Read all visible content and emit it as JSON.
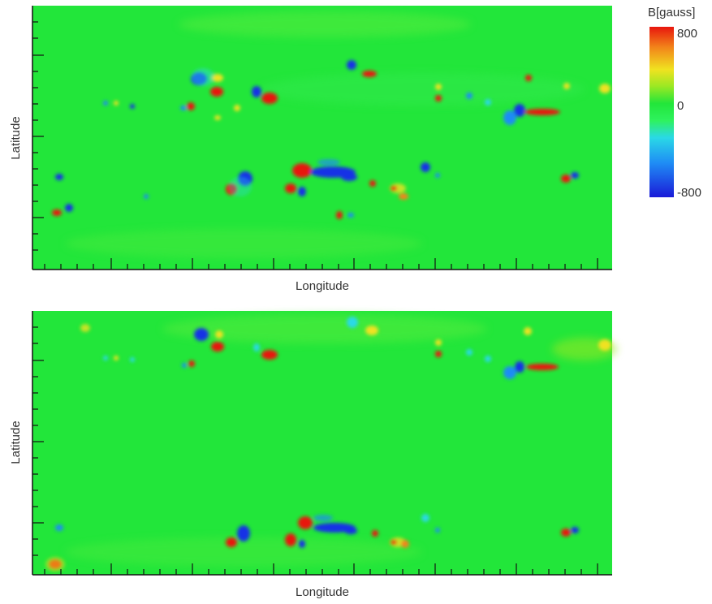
{
  "colors": {
    "field_background": "#22e63a",
    "positive_strong": "#e8160d",
    "negative_strong": "#1430e6",
    "colorbar_stops": [
      "#1a1ad8",
      "#1f8cf5",
      "#2ad9e6",
      "#2ef25e",
      "#22e63a",
      "#9ae823",
      "#f0e220",
      "#f2841a",
      "#e8160d"
    ]
  },
  "colorbar": {
    "title": "B[gauss]",
    "max_label": "800",
    "mid_label": "0",
    "min_label": "-800"
  },
  "chart_data": [
    {
      "type": "heatmap",
      "xlabel": "Longitude",
      "ylabel": "Latitude",
      "value_range": [
        -800,
        800
      ],
      "units": "gauss"
    },
    {
      "type": "heatmap",
      "xlabel": "Longitude",
      "ylabel": "Latitude",
      "value_range": [
        -800,
        800
      ],
      "units": "gauss"
    }
  ]
}
